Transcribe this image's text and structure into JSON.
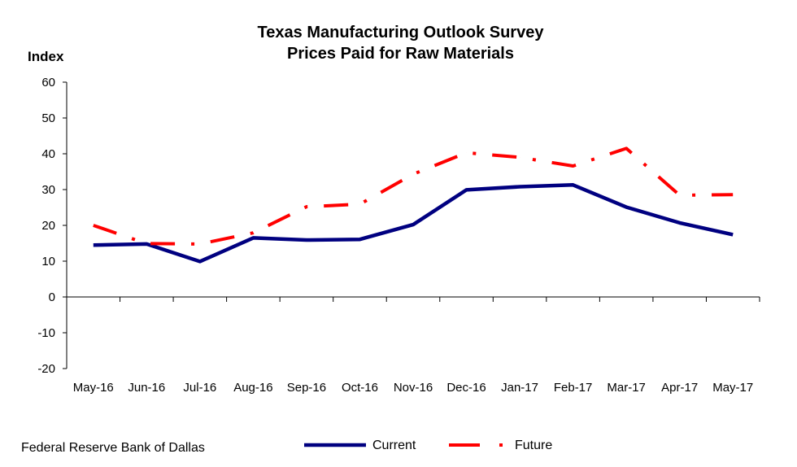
{
  "chart_data": {
    "type": "line",
    "title": "Texas Manufacturing Outlook Survey",
    "subtitle": "Prices Paid for Raw Materials",
    "ylabel": "Index",
    "xlabel": "",
    "ylim": [
      -20,
      60
    ],
    "yticks": [
      -20,
      -10,
      0,
      10,
      20,
      30,
      40,
      50,
      60
    ],
    "categories": [
      "May-16",
      "Jun-16",
      "Jul-16",
      "Aug-16",
      "Sep-16",
      "Oct-16",
      "Nov-16",
      "Dec-16",
      "Jan-17",
      "Feb-17",
      "Mar-17",
      "Apr-17",
      "May-17"
    ],
    "series": [
      {
        "name": "Current",
        "color": "#000080",
        "style": "solid",
        "values": [
          14.5,
          14.8,
          9.9,
          16.5,
          15.9,
          16.1,
          20.2,
          29.9,
          30.8,
          31.3,
          25.1,
          20.7,
          17.4
        ]
      },
      {
        "name": "Future",
        "color": "#ff0000",
        "style": "dash-dot",
        "values": [
          20.0,
          14.9,
          14.8,
          17.9,
          25.2,
          25.9,
          34.3,
          40.3,
          39.0,
          36.6,
          41.5,
          28.4,
          28.6
        ]
      }
    ],
    "grid": false,
    "legend": "bottom-center"
  },
  "footer": {
    "source": "Federal Reserve Bank of Dallas"
  }
}
